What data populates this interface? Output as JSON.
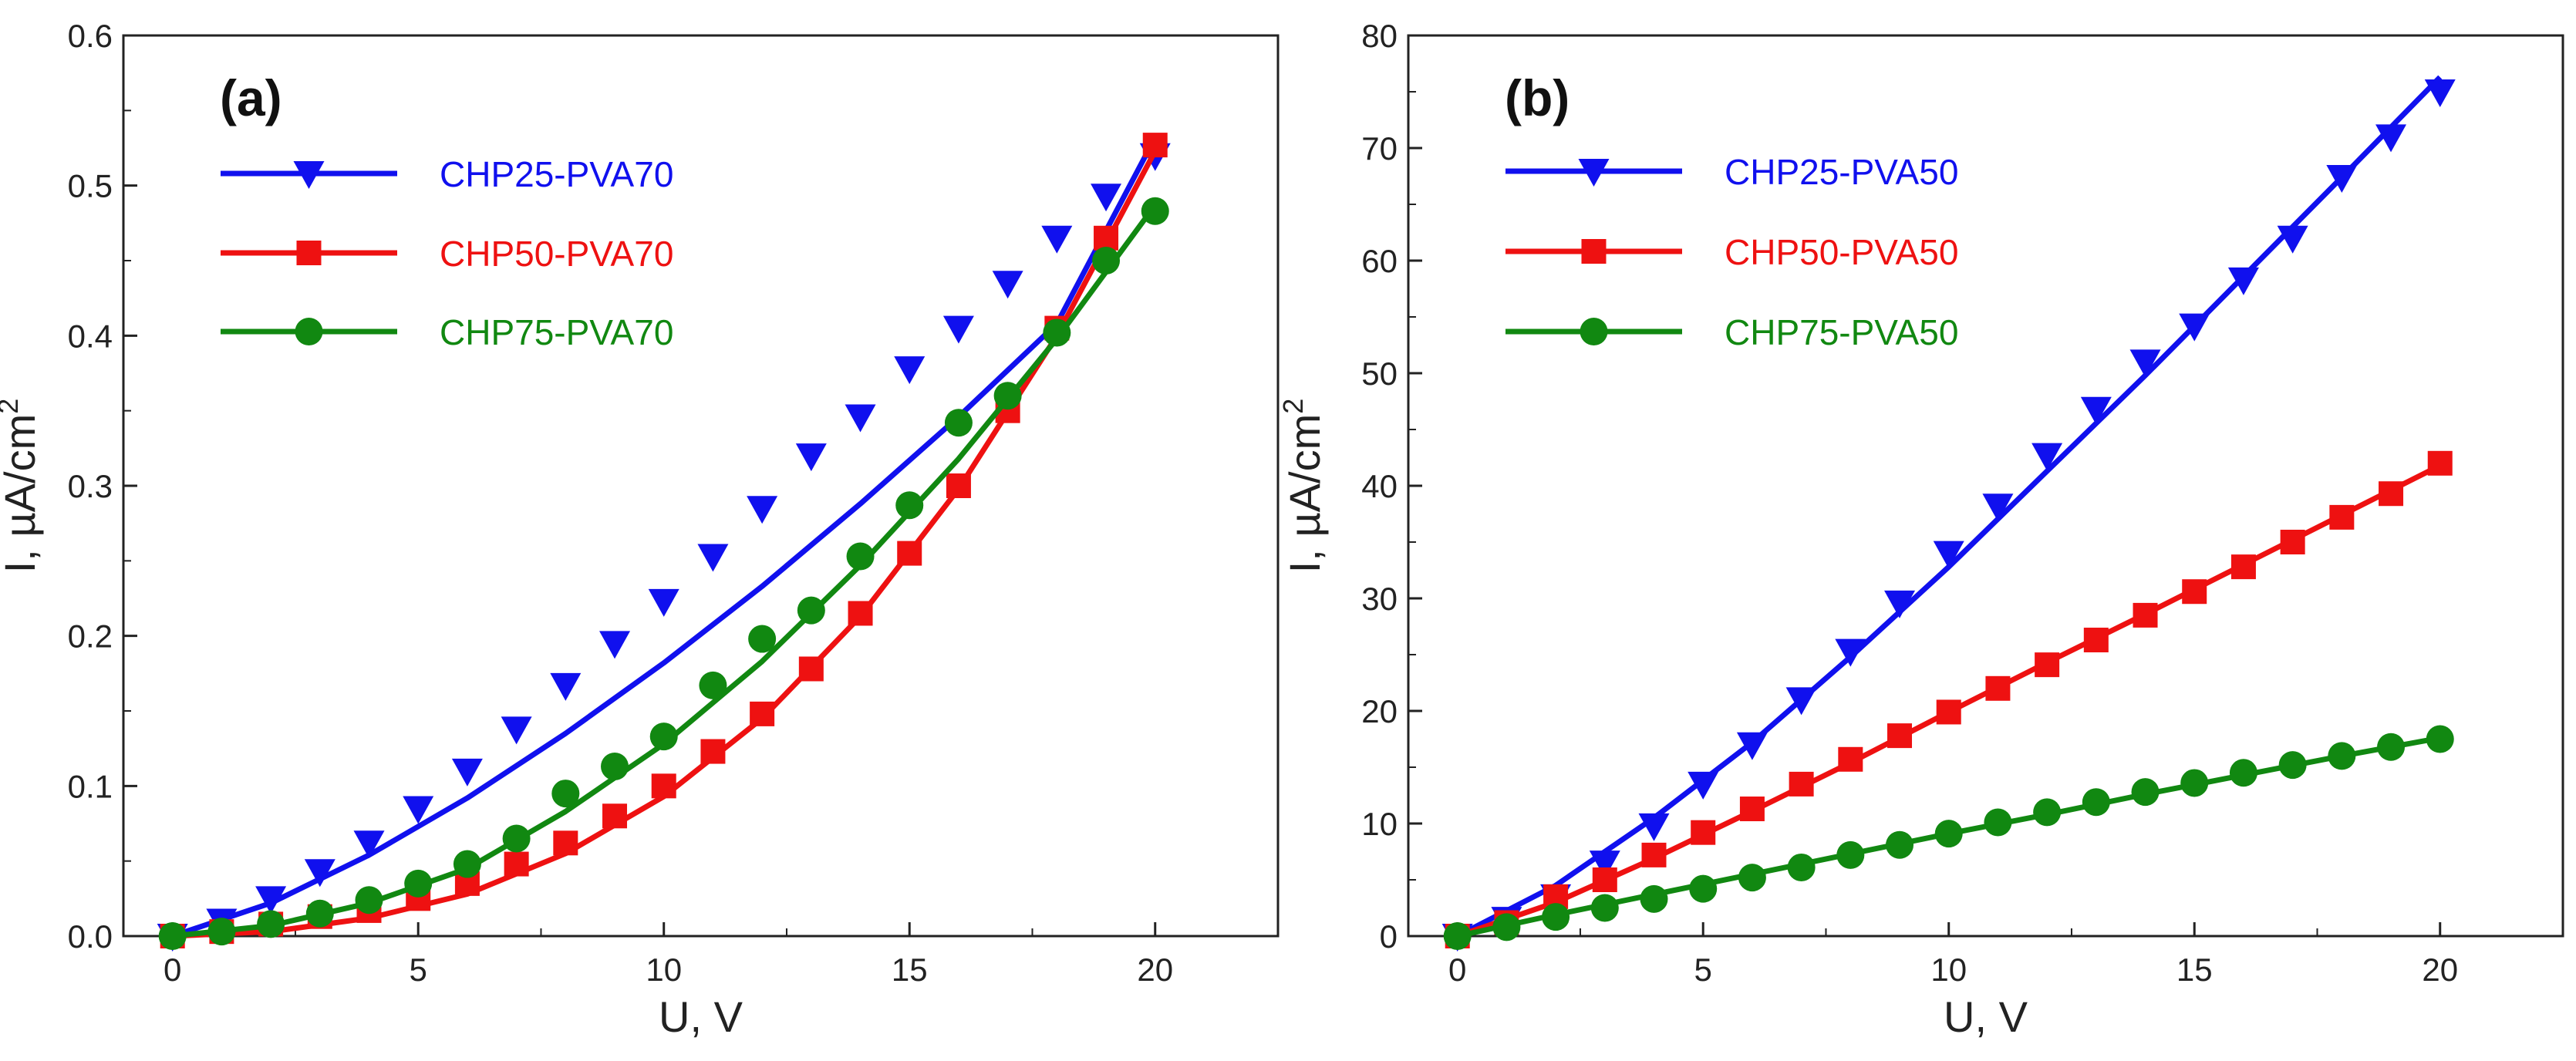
{
  "chart_data": [
    {
      "type": "scatter",
      "panel_label": "(a)",
      "xlabel": "U, V",
      "ylabel": "I, µA/cm",
      "ylabel_sup": "2",
      "xlim": [
        -1,
        22.5
      ],
      "ylim": [
        0,
        0.6
      ],
      "xticks": [
        0,
        5,
        10,
        15,
        20
      ],
      "xtick_labels": [
        "0",
        "5",
        "10",
        "15",
        "20"
      ],
      "yticks": [
        0.0,
        0.1,
        0.2,
        0.3,
        0.4,
        0.5,
        0.6
      ],
      "ytick_labels": [
        "0.0",
        "0.1",
        "0.2",
        "0.3",
        "0.4",
        "0.5",
        "0.6"
      ],
      "grid": false,
      "legend_position": "top-left",
      "series": [
        {
          "name": "CHP25-PVA70",
          "color": "#1010ee",
          "marker": "triangle-down",
          "x": [
            0,
            1,
            2,
            3,
            4,
            5,
            6,
            7,
            8,
            9,
            10,
            11,
            12,
            13,
            14,
            15,
            16,
            17,
            18,
            19,
            20
          ],
          "y": [
            0.0,
            0.01,
            0.025,
            0.043,
            0.062,
            0.085,
            0.11,
            0.138,
            0.167,
            0.195,
            0.223,
            0.253,
            0.285,
            0.32,
            0.346,
            0.378,
            0.405,
            0.435,
            0.465,
            0.493,
            0.52
          ],
          "fit_x": [
            0,
            2,
            4,
            6,
            8,
            10,
            12,
            14,
            16,
            18,
            20
          ],
          "fit_y": [
            0.0,
            0.022,
            0.054,
            0.092,
            0.135,
            0.182,
            0.233,
            0.288,
            0.346,
            0.408,
            0.532
          ]
        },
        {
          "name": "CHP50-PVA70",
          "color": "#ee1111",
          "marker": "square",
          "x": [
            0,
            1,
            2,
            3,
            4,
            5,
            6,
            7,
            8,
            9,
            10,
            11,
            12,
            13,
            14,
            15,
            16,
            17,
            18,
            19,
            20
          ],
          "y": [
            0.0,
            0.003,
            0.008,
            0.013,
            0.017,
            0.025,
            0.035,
            0.048,
            0.062,
            0.08,
            0.1,
            0.123,
            0.148,
            0.178,
            0.215,
            0.255,
            0.3,
            0.35,
            0.405,
            0.465,
            0.527
          ],
          "fit_x": [
            0,
            2,
            4,
            6,
            8,
            10,
            12,
            14,
            16,
            18,
            20
          ],
          "fit_y": [
            0.0,
            0.003,
            0.012,
            0.028,
            0.055,
            0.093,
            0.145,
            0.213,
            0.298,
            0.4,
            0.523
          ]
        },
        {
          "name": "CHP75-PVA70",
          "color": "#118811",
          "marker": "circle",
          "x": [
            0,
            1,
            2,
            3,
            4,
            5,
            6,
            7,
            8,
            9,
            10,
            11,
            12,
            13,
            14,
            15,
            16,
            17,
            18,
            19,
            20
          ],
          "y": [
            0.0,
            0.003,
            0.008,
            0.015,
            0.024,
            0.035,
            0.048,
            0.065,
            0.095,
            0.113,
            0.133,
            0.167,
            0.198,
            0.217,
            0.253,
            0.287,
            0.342,
            0.36,
            0.402,
            0.45,
            0.483
          ],
          "fit_x": [
            0,
            2,
            4,
            6,
            8,
            10,
            12,
            14,
            16,
            18,
            20
          ],
          "fit_y": [
            0.0,
            0.007,
            0.022,
            0.045,
            0.083,
            0.128,
            0.183,
            0.247,
            0.318,
            0.398,
            0.487
          ]
        }
      ]
    },
    {
      "type": "scatter",
      "panel_label": "(b)",
      "xlabel": "U, V",
      "ylabel": "I, µA/cm",
      "ylabel_sup": "2",
      "xlim": [
        -1,
        22.5
      ],
      "ylim": [
        0,
        80
      ],
      "xticks": [
        0,
        5,
        10,
        15,
        20
      ],
      "xtick_labels": [
        "0",
        "5",
        "10",
        "15",
        "20"
      ],
      "yticks": [
        0,
        10,
        20,
        30,
        40,
        50,
        60,
        70,
        80
      ],
      "ytick_labels": [
        "0",
        "10",
        "20",
        "30",
        "40",
        "50",
        "60",
        "70",
        "80"
      ],
      "grid": false,
      "legend_position": "top-left",
      "series": [
        {
          "name": "CHP25-PVA50",
          "color": "#1010ee",
          "marker": "triangle-down",
          "x": [
            0,
            1,
            2,
            3,
            4,
            5,
            6,
            7,
            8,
            9,
            10,
            11,
            12,
            13,
            14,
            15,
            16,
            17,
            18,
            19,
            20
          ],
          "y": [
            0,
            1.5,
            3.5,
            6.5,
            9.8,
            13.5,
            17.0,
            21.0,
            25.3,
            29.6,
            34.0,
            38.2,
            42.7,
            46.8,
            51.0,
            54.2,
            58.3,
            62.0,
            67.4,
            71.0,
            75.0
          ],
          "fit_x": [
            0,
            2,
            4,
            6,
            8,
            10,
            12,
            14,
            16,
            18,
            20
          ],
          "fit_y": [
            0,
            4.5,
            10.5,
            17.2,
            24.8,
            32.8,
            41.3,
            49.8,
            58.6,
            67.4,
            76.3
          ]
        },
        {
          "name": "CHP50-PVA50",
          "color": "#ee1111",
          "marker": "square",
          "x": [
            0,
            1,
            2,
            3,
            4,
            5,
            6,
            7,
            8,
            9,
            10,
            11,
            12,
            13,
            14,
            15,
            16,
            17,
            18,
            19,
            20
          ],
          "y": [
            0,
            1.2,
            3.5,
            5.0,
            7.2,
            9.2,
            11.3,
            13.5,
            15.7,
            17.8,
            19.9,
            22.0,
            24.1,
            26.3,
            28.5,
            30.6,
            32.8,
            35.0,
            37.2,
            39.3,
            42.0
          ],
          "fit_x": [
            0,
            2,
            4,
            6,
            8,
            10,
            12,
            14,
            16,
            18,
            20
          ],
          "fit_y": [
            0,
            3.0,
            6.9,
            11.1,
            15.4,
            19.9,
            24.3,
            28.6,
            33.0,
            37.4,
            41.8
          ]
        },
        {
          "name": "CHP75-PVA50",
          "color": "#118811",
          "marker": "circle",
          "x": [
            0,
            1,
            2,
            3,
            4,
            5,
            6,
            7,
            8,
            9,
            10,
            11,
            12,
            13,
            14,
            15,
            16,
            17,
            18,
            19,
            20
          ],
          "y": [
            0,
            0.8,
            1.7,
            2.5,
            3.3,
            4.2,
            5.2,
            6.1,
            7.2,
            8.1,
            9.1,
            10.1,
            11.0,
            11.9,
            12.8,
            13.6,
            14.5,
            15.2,
            16.0,
            16.8,
            17.5
          ],
          "fit_x": [
            0,
            2,
            4,
            6,
            8,
            10,
            12,
            14,
            16,
            18,
            20
          ],
          "fit_y": [
            0,
            1.9,
            3.7,
            5.5,
            7.3,
            9.1,
            10.8,
            12.6,
            14.3,
            16.0,
            17.6
          ]
        }
      ]
    }
  ]
}
